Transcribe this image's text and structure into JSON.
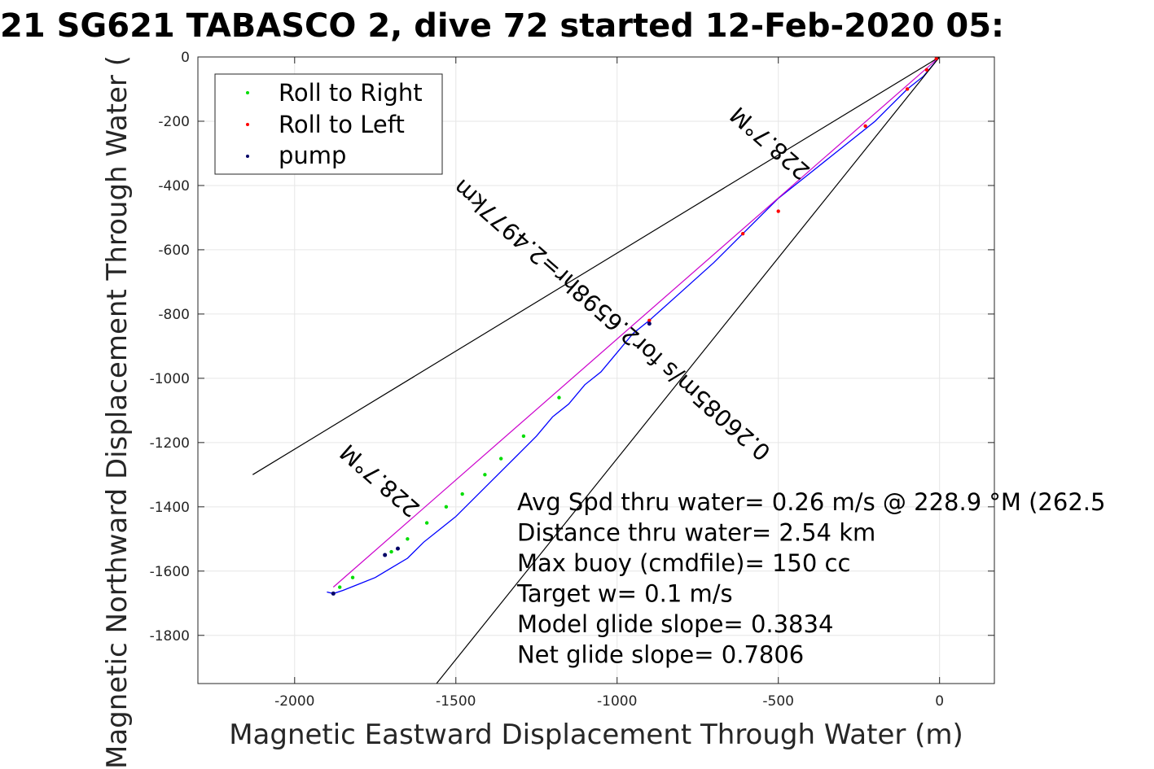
{
  "chart_data": {
    "type": "line",
    "title": "21 SG621 TABASCO 2, dive 72 started 12-Feb-2020 05:",
    "xlabel": "Magnetic Eastward Displacement Through Water (m)",
    "ylabel": "Magnetic Northward Displacement Through Water (",
    "xlim": [
      -2300,
      170
    ],
    "ylim": [
      -1950,
      0
    ],
    "grid": true,
    "xticks": [
      -2000,
      -1500,
      -1000,
      -500,
      0
    ],
    "xtick_labels": [
      "-2000",
      "-1500",
      "-1000",
      "-500",
      "0"
    ],
    "yticks": [
      0,
      -200,
      -400,
      -600,
      -800,
      -1000,
      -1200,
      -1400,
      -1600,
      -1800
    ],
    "ytick_labels": [
      "0",
      "-200",
      "-400",
      "-600",
      "-800",
      "-1000",
      "-1200",
      "-1400",
      "-1600",
      "-1800"
    ],
    "legend": {
      "placement": "top-left",
      "entries": [
        {
          "label": "Roll to Right",
          "color": "#00dd00"
        },
        {
          "label": "Roll to Left",
          "color": "#ff0000"
        },
        {
          "label": "pump",
          "color": "#000066"
        }
      ]
    },
    "series": [
      {
        "kind": "track",
        "color": "#0000ff",
        "x": [
          0,
          -50,
          -100,
          -150,
          -200,
          -300,
          -400,
          -500,
          -600,
          -700,
          -800,
          -900,
          -950,
          -1000,
          -1050,
          -1100,
          -1150,
          -1200,
          -1250,
          -1300,
          -1350,
          -1400,
          -1450,
          -1500,
          -1550,
          -1600,
          -1650,
          -1700,
          -1750,
          -1800,
          -1850,
          -1880,
          -1900
        ],
        "y": [
          0,
          -60,
          -100,
          -150,
          -200,
          -280,
          -360,
          -440,
          -540,
          -640,
          -730,
          -820,
          -860,
          -920,
          -980,
          -1020,
          -1080,
          -1120,
          -1180,
          -1230,
          -1280,
          -1330,
          -1380,
          -1430,
          -1470,
          -1510,
          -1560,
          -1590,
          -1620,
          -1640,
          -1660,
          -1670,
          -1665
        ]
      },
      {
        "kind": "heading-line",
        "color": "#cc00cc",
        "x": [
          0,
          -1880
        ],
        "y": [
          0,
          -1650
        ]
      },
      {
        "kind": "cone-line",
        "color": "#000000",
        "x": [
          0,
          -2130
        ],
        "y": [
          0,
          -1300
        ]
      },
      {
        "kind": "cone-line",
        "color": "#000000",
        "x": [
          0,
          -1560
        ],
        "y": [
          0,
          -1950
        ]
      }
    ],
    "markers": {
      "roll_right": {
        "color": "#00dd00",
        "x": [
          -1180,
          -1290,
          -1360,
          -1410,
          -1480,
          -1530,
          -1590,
          -1650,
          -1700,
          -1820,
          -1860
        ],
        "y": [
          -1060,
          -1180,
          -1250,
          -1300,
          -1360,
          -1400,
          -1450,
          -1500,
          -1540,
          -1620,
          -1650
        ]
      },
      "roll_left": {
        "color": "#ff0000",
        "x": [
          -10,
          -40,
          -100,
          -230,
          -500,
          -610,
          -900
        ],
        "y": [
          -5,
          -40,
          -100,
          -215,
          -480,
          -550,
          -820
        ]
      },
      "pump": {
        "color": "#000066",
        "x": [
          -900,
          -1680,
          -1720,
          -1880
        ],
        "y": [
          -830,
          -1530,
          -1550,
          -1670
        ]
      }
    },
    "annotations": [
      {
        "text": "228.7°M",
        "x": -510,
        "y": -250,
        "rotation": 221.3
      },
      {
        "text": "0.26085m/s for2.6598hr=2.4977km",
        "x": -1000,
        "y": -800,
        "rotation": 221.3
      },
      {
        "text": "228.7°M",
        "x": -1720,
        "y": -1300,
        "rotation": 221.3
      }
    ],
    "stats": {
      "x": -1310,
      "y": -1410,
      "lines": [
        "Avg Spd thru water=  0.26 m/s @ 228.9 °M (262.5",
        "Distance thru water=  2.54 km",
        "Max buoy (cmdfile)= 150 cc",
        "Target w= 0.1 m/s",
        "Model glide slope= 0.3834",
        "Net glide slope= 0.7806"
      ]
    }
  }
}
